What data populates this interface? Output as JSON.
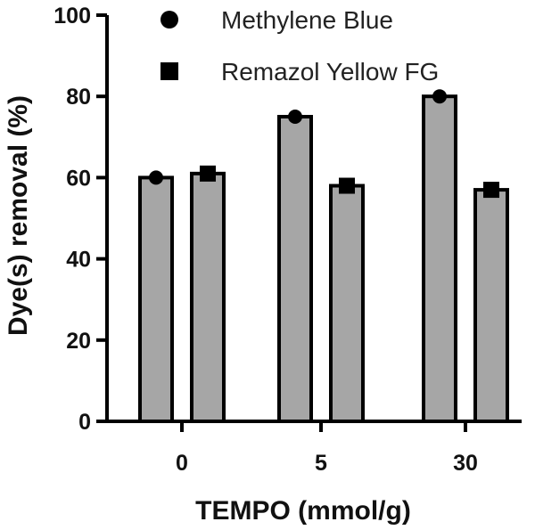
{
  "chart_data": {
    "type": "bar",
    "title": "",
    "xlabel": "TEMPO (mmol/g)",
    "ylabel": "Dye(s) removal (%)",
    "ylim": [
      0,
      100
    ],
    "yticks": [
      0,
      20,
      40,
      60,
      80,
      100
    ],
    "categories": [
      "0",
      "5",
      "30"
    ],
    "series": [
      {
        "name": "Methylene Blue",
        "marker": "circle",
        "values": [
          60,
          75,
          80
        ]
      },
      {
        "name": "Remazol Yellow FG",
        "marker": "square",
        "values": [
          61,
          58,
          57
        ]
      }
    ],
    "legend_position": "top-right",
    "grid": false,
    "colors": {
      "bar_fill": "#a6a6a6",
      "bar_stroke": "#000000",
      "marker": "#000000",
      "axis": "#000000"
    }
  }
}
